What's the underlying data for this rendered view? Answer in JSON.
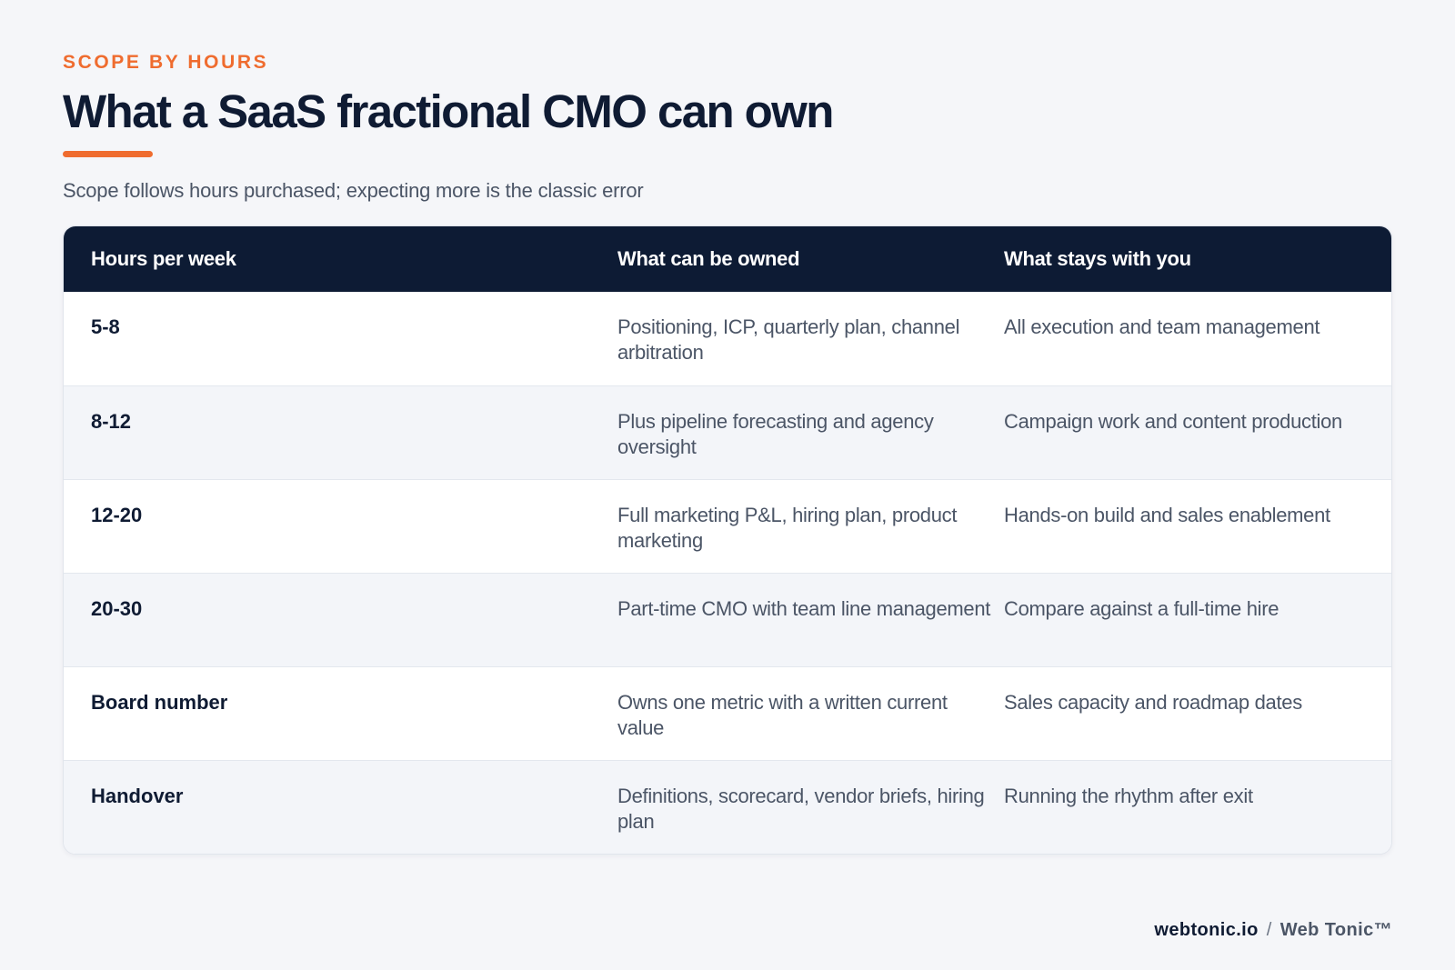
{
  "header": {
    "eyebrow": "SCOPE BY HOURS",
    "title": "What a SaaS fractional CMO can own",
    "subtitle": "Scope follows hours purchased; expecting more is the classic error"
  },
  "colors": {
    "accent": "#ef6c2f",
    "header_bg": "#0d1b34",
    "page_bg": "#f5f6f9",
    "row_alt_bg": "#f3f5f9"
  },
  "table": {
    "columns": [
      "Hours per week",
      "What can be owned",
      "What stays with you"
    ],
    "rows": [
      [
        "5-8",
        "Positioning, ICP, quarterly plan, channel arbitration",
        "All execution and team management"
      ],
      [
        "8-12",
        "Plus pipeline forecasting and agency oversight",
        "Campaign work and content production"
      ],
      [
        "12-20",
        "Full marketing P&L, hiring plan, product marketing",
        "Hands-on build and sales enablement"
      ],
      [
        "20-30",
        "Part-time CMO with team line management",
        "Compare against a full-time hire"
      ],
      [
        "Board number",
        "Owns one metric with a written current value",
        "Sales capacity and roadmap dates"
      ],
      [
        "Handover",
        "Definitions, scorecard, vendor briefs, hiring plan",
        "Running the rhythm after exit"
      ]
    ]
  },
  "footer": {
    "domain": "webtonic.io",
    "separator": "/",
    "brand": "Web Tonic™"
  }
}
